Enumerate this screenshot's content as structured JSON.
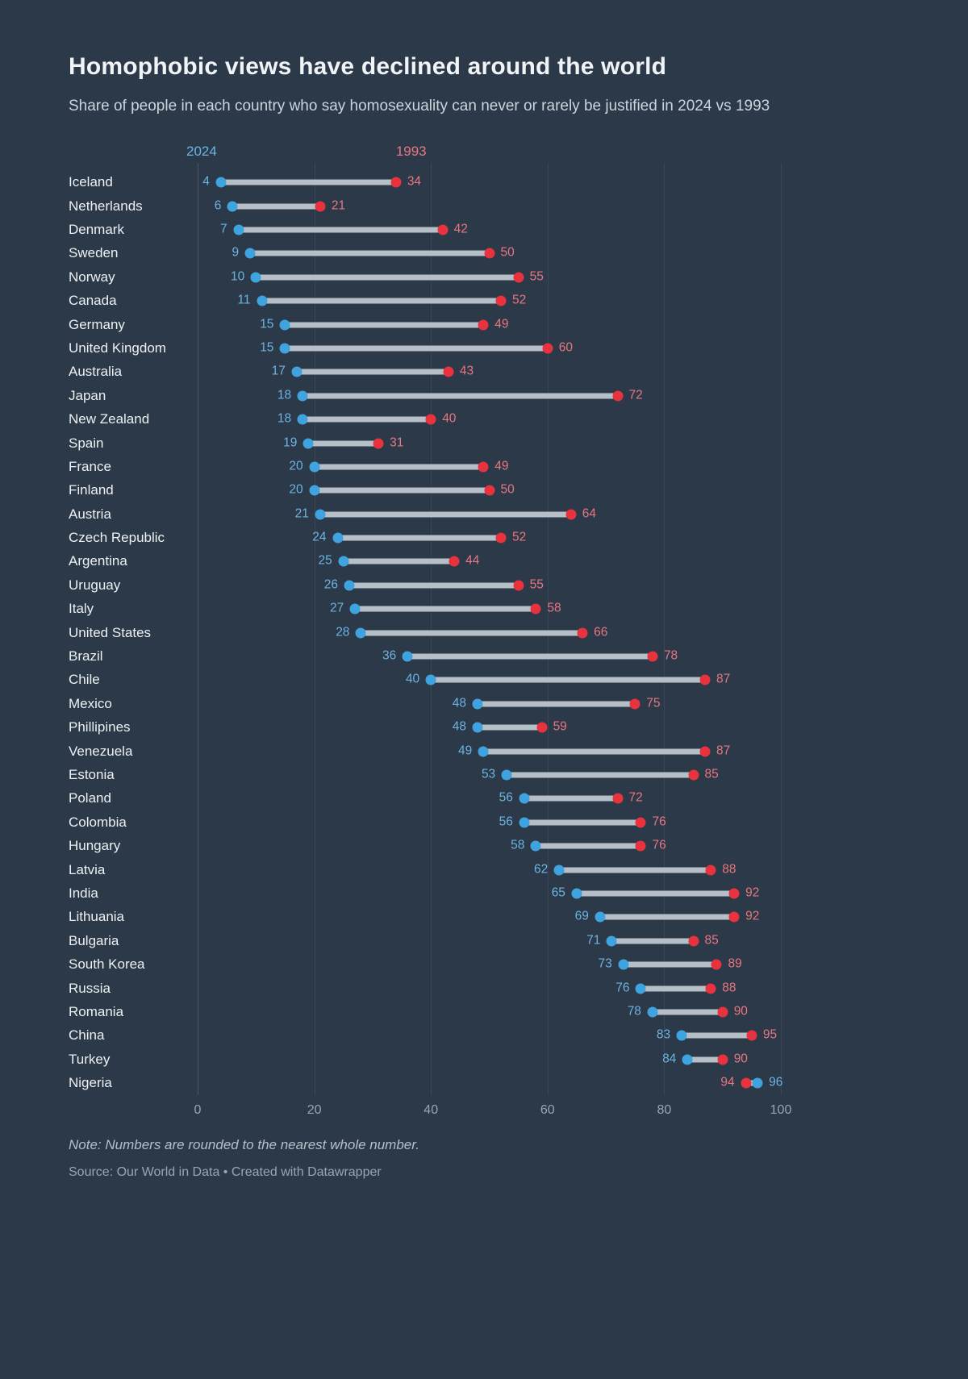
{
  "page": {
    "title": "Homophobic views have declined around the world",
    "subtitle": "Share of people in each country who say homosexuality can never or rarely be justified in 2024 vs 1993"
  },
  "legend": {
    "new_label": "2024",
    "old_label": "1993"
  },
  "footer": {
    "note": "Note: Numbers are rounded to the nearest whole number.",
    "source": "Source: Our World in Data • Created with Datawrapper"
  },
  "colors": {
    "background": "#2b3948",
    "bar": "#b6bfc7",
    "dot_2024": "#3fa3e0",
    "dot_1993": "#e8323e",
    "label_2024": "#6db4e3",
    "label_1993": "#e97681"
  },
  "chart_data": {
    "type": "dumbbell",
    "title": "Homophobic views have declined around the world",
    "subtitle": "Share of people in each country who say homosexuality can never or rarely be justified in 2024 vs 1993",
    "series_names": [
      "2024",
      "1993"
    ],
    "xlim": [
      0,
      100
    ],
    "x_ticks": [
      0,
      20,
      40,
      60,
      80,
      100
    ],
    "grid": true,
    "rows": [
      {
        "country": "Iceland",
        "v2024": 4,
        "v1993": 34
      },
      {
        "country": "Netherlands",
        "v2024": 6,
        "v1993": 21
      },
      {
        "country": "Denmark",
        "v2024": 7,
        "v1993": 42
      },
      {
        "country": "Sweden",
        "v2024": 9,
        "v1993": 50
      },
      {
        "country": "Norway",
        "v2024": 10,
        "v1993": 55
      },
      {
        "country": "Canada",
        "v2024": 11,
        "v1993": 52
      },
      {
        "country": "Germany",
        "v2024": 15,
        "v1993": 49
      },
      {
        "country": "United Kingdom",
        "v2024": 15,
        "v1993": 60
      },
      {
        "country": "Australia",
        "v2024": 17,
        "v1993": 43
      },
      {
        "country": "Japan",
        "v2024": 18,
        "v1993": 72
      },
      {
        "country": "New Zealand",
        "v2024": 18,
        "v1993": 40
      },
      {
        "country": "Spain",
        "v2024": 19,
        "v1993": 31
      },
      {
        "country": "France",
        "v2024": 20,
        "v1993": 49
      },
      {
        "country": "Finland",
        "v2024": 20,
        "v1993": 50
      },
      {
        "country": "Austria",
        "v2024": 21,
        "v1993": 64
      },
      {
        "country": "Czech Republic",
        "v2024": 24,
        "v1993": 52
      },
      {
        "country": "Argentina",
        "v2024": 25,
        "v1993": 44
      },
      {
        "country": "Uruguay",
        "v2024": 26,
        "v1993": 55
      },
      {
        "country": "Italy",
        "v2024": 27,
        "v1993": 58
      },
      {
        "country": "United States",
        "v2024": 28,
        "v1993": 66
      },
      {
        "country": "Brazil",
        "v2024": 36,
        "v1993": 78
      },
      {
        "country": "Chile",
        "v2024": 40,
        "v1993": 87
      },
      {
        "country": "Mexico",
        "v2024": 48,
        "v1993": 75
      },
      {
        "country": "Phillipines",
        "v2024": 48,
        "v1993": 59
      },
      {
        "country": "Venezuela",
        "v2024": 49,
        "v1993": 87
      },
      {
        "country": "Estonia",
        "v2024": 53,
        "v1993": 85
      },
      {
        "country": "Poland",
        "v2024": 56,
        "v1993": 72
      },
      {
        "country": "Colombia",
        "v2024": 56,
        "v1993": 76
      },
      {
        "country": "Hungary",
        "v2024": 58,
        "v1993": 76
      },
      {
        "country": "Latvia",
        "v2024": 62,
        "v1993": 88
      },
      {
        "country": "India",
        "v2024": 65,
        "v1993": 92
      },
      {
        "country": "Lithuania",
        "v2024": 69,
        "v1993": 92
      },
      {
        "country": "Bulgaria",
        "v2024": 71,
        "v1993": 85
      },
      {
        "country": "South Korea",
        "v2024": 73,
        "v1993": 89
      },
      {
        "country": "Russia",
        "v2024": 76,
        "v1993": 88
      },
      {
        "country": "Romania",
        "v2024": 78,
        "v1993": 90
      },
      {
        "country": "China",
        "v2024": 83,
        "v1993": 95
      },
      {
        "country": "Turkey",
        "v2024": 84,
        "v1993": 90
      },
      {
        "country": "Nigeria",
        "v2024": 96,
        "v1993": 94
      }
    ]
  }
}
